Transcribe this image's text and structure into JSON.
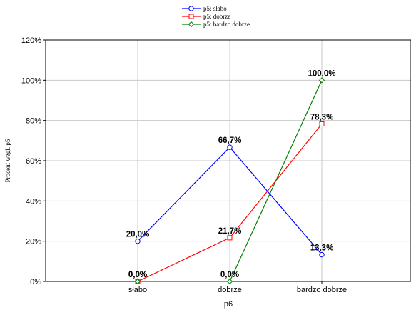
{
  "chart_data": {
    "type": "line",
    "categories": [
      "słabo",
      "dobrze",
      "bardzo dobrze"
    ],
    "xlabel": "p6",
    "ylabel": "Procent wzgl. p5",
    "ylim": [
      0,
      120
    ],
    "yticks": [
      "0%",
      "20%",
      "40%",
      "60%",
      "80%",
      "100%",
      "120%"
    ],
    "grid": true,
    "legend_position": "top-center",
    "series": [
      {
        "name": "p5: słabo",
        "values": [
          20.0,
          66.7,
          13.3
        ],
        "labels": [
          "20,0%",
          "66,7%",
          "13,3%"
        ],
        "color": "#0000ff",
        "marker": "circle"
      },
      {
        "name": "p5: dobrze",
        "values": [
          0.0,
          21.7,
          78.3
        ],
        "labels": [
          "0,0%",
          "21,7%",
          "78,3%"
        ],
        "color": "#ff0000",
        "marker": "square"
      },
      {
        "name": "p5: bardzo dobrze",
        "values": [
          0.0,
          0.0,
          100.0
        ],
        "labels": [
          "0,0%",
          "0,0%",
          "100,0%"
        ],
        "color": "#008000",
        "marker": "diamond"
      }
    ]
  }
}
